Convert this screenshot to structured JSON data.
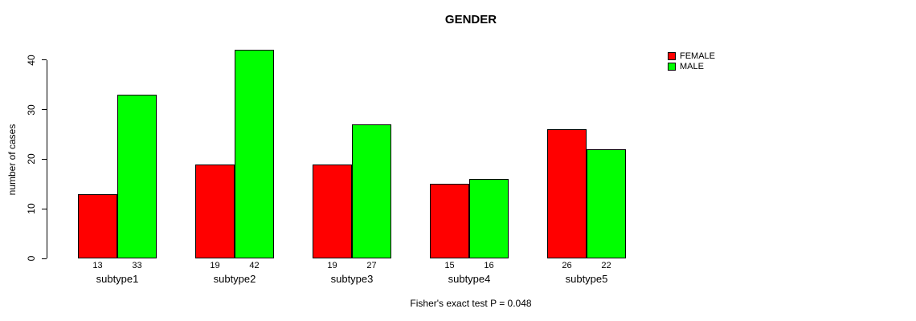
{
  "chart_data": {
    "type": "bar",
    "title": "GENDER",
    "ylabel": "number of cases",
    "categories": [
      "subtype1",
      "subtype2",
      "subtype3",
      "subtype4",
      "subtype5"
    ],
    "series": [
      {
        "name": "FEMALE",
        "color": "#FF0000",
        "values": [
          13,
          19,
          19,
          15,
          26
        ]
      },
      {
        "name": "MALE",
        "color": "#00FF00",
        "values": [
          33,
          42,
          27,
          16,
          22
        ]
      }
    ],
    "bar_value_labels": {
      "FEMALE": [
        "13",
        "19",
        "19",
        "15",
        "26"
      ],
      "MALE": [
        "33",
        "42",
        "27",
        "16",
        "22"
      ]
    },
    "ylim": [
      0,
      40
    ],
    "yticks": [
      "0",
      "10",
      "20",
      "30",
      "40"
    ],
    "grid": false,
    "legend_position": "top-right",
    "annotation": "Fisher's exact test P = 0.048"
  }
}
